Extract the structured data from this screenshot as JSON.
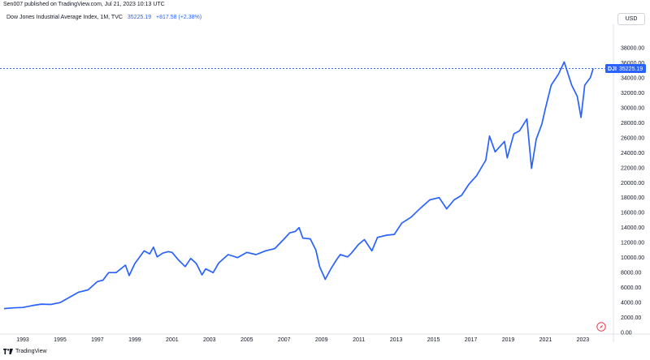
{
  "header": {
    "publish_line": "Sen007 published on TradingView.com, Jul 21, 2023 10:13 UTC",
    "symbol_name": "Dow Jones Industrial Average Index, 1M, TVC",
    "last_price": "35225.19",
    "change": "+817.58 (+2.38%)",
    "currency": "USD"
  },
  "footer": {
    "logo_text": "TradingView"
  },
  "colors": {
    "line": "#2962ff",
    "axis_text": "#131722",
    "price_tag_bg": "#2962ff",
    "dotted_line": "#2962ff"
  },
  "chart_data": {
    "type": "line",
    "title": "",
    "xlabel": "",
    "ylabel": "",
    "xlim": [
      1992.0,
      2024.2
    ],
    "ylim": [
      0,
      38000
    ],
    "x_ticks": [
      "1993",
      "1995",
      "1997",
      "1999",
      "2001",
      "2003",
      "2005",
      "2007",
      "2009",
      "2011",
      "2013",
      "2015",
      "2017",
      "2019",
      "2021",
      "2023"
    ],
    "y_ticks": [
      "0.00",
      "2000.00",
      "4000.00",
      "6000.00",
      "8000.00",
      "10000.00",
      "12000.00",
      "14000.00",
      "16000.00",
      "18000.00",
      "20000.00",
      "22000.00",
      "24000.00",
      "26000.00",
      "28000.00",
      "30000.00",
      "32000.00",
      "34000.00",
      "36000.00",
      "38000.00"
    ],
    "price_tag": {
      "symbol": "DJI",
      "value": 35225.19
    },
    "series": [
      {
        "x": [
          1992.0,
          1992.5,
          1993.0,
          1993.5,
          1994.0,
          1994.5,
          1995.0,
          1995.5,
          1996.0,
          1996.5,
          1997.0,
          1997.3,
          1997.6,
          1998.0,
          1998.5,
          1998.7,
          1999.0,
          1999.5,
          1999.8,
          2000.0,
          2000.2,
          2000.5,
          2000.8,
          2001.0,
          2001.3,
          2001.7,
          2002.0,
          2002.3,
          2002.6,
          2002.8,
          2003.2,
          2003.5,
          2004.0,
          2004.5,
          2005.0,
          2005.5,
          2006.0,
          2006.5,
          2007.0,
          2007.3,
          2007.6,
          2007.8,
          2008.0,
          2008.4,
          2008.7,
          2008.9,
          2009.2,
          2009.5,
          2009.8,
          2010.0,
          2010.4,
          2010.6,
          2011.0,
          2011.3,
          2011.7,
          2012.0,
          2012.5,
          2012.9,
          2013.3,
          2013.8,
          2014.3,
          2014.8,
          2015.3,
          2015.7,
          2016.1,
          2016.5,
          2016.9,
          2017.3,
          2017.8,
          2018.0,
          2018.3,
          2018.8,
          2018.95,
          2019.3,
          2019.6,
          2020.0,
          2020.25,
          2020.5,
          2020.8,
          2021.0,
          2021.3,
          2021.7,
          2022.0,
          2022.4,
          2022.7,
          2022.9,
          2023.1,
          2023.4,
          2023.55
        ],
        "y": [
          3200,
          3300,
          3350,
          3600,
          3800,
          3750,
          4000,
          4700,
          5400,
          5700,
          6800,
          7000,
          8000,
          8000,
          9000,
          7600,
          9200,
          10900,
          10500,
          11400,
          10100,
          10600,
          10800,
          10700,
          9800,
          8800,
          9900,
          9200,
          7700,
          8500,
          8000,
          9300,
          10400,
          10000,
          10700,
          10400,
          10900,
          11200,
          12500,
          13300,
          13500,
          14000,
          12600,
          12500,
          11000,
          8800,
          7100,
          8500,
          9700,
          10400,
          10100,
          10600,
          11800,
          12400,
          10900,
          12700,
          13000,
          13100,
          14600,
          15400,
          16600,
          17700,
          18000,
          16500,
          17700,
          18300,
          19800,
          20900,
          23000,
          26200,
          24100,
          25500,
          23300,
          26500,
          26900,
          28500,
          21900,
          25800,
          27800,
          30000,
          33000,
          34500,
          36100,
          33000,
          31500,
          28700,
          33000,
          34000,
          35225
        ]
      }
    ]
  }
}
